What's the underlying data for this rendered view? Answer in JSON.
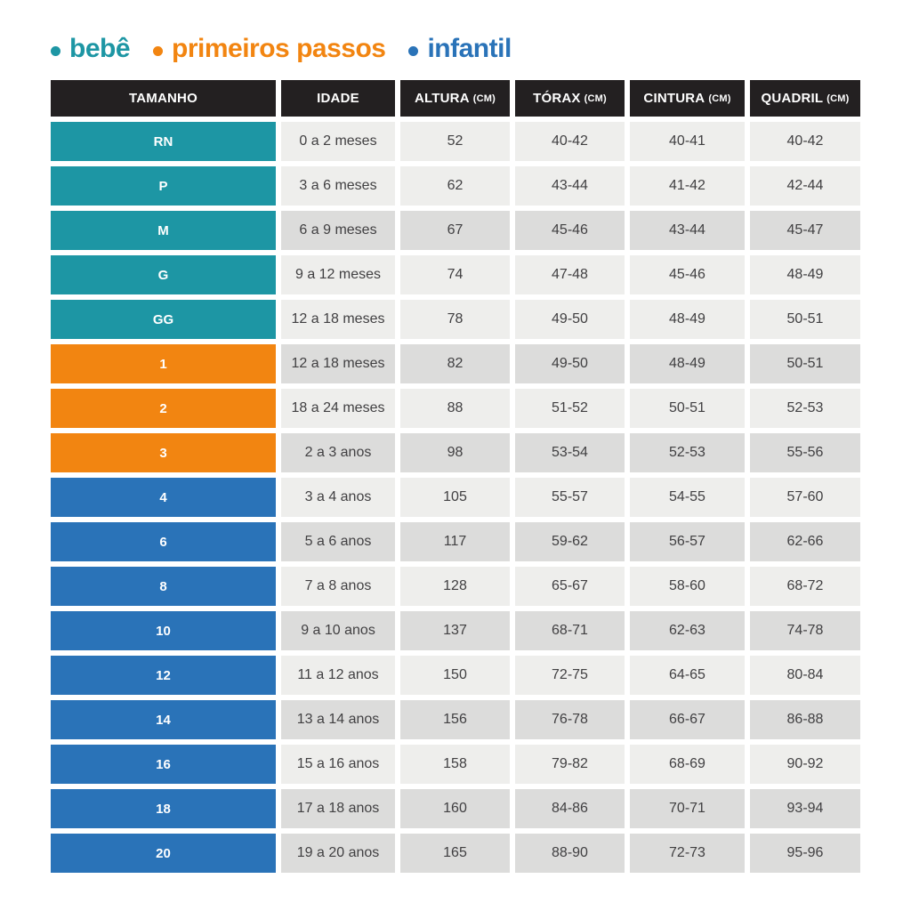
{
  "colors": {
    "bebe": "#1d96a4",
    "primeiros_passos": "#f28511",
    "infantil": "#2a73b8",
    "header_bg": "#232021",
    "row_light": "#eeeeec",
    "row_dark": "#dcdcdb",
    "cell_text": "#414042",
    "header_text": "#ffffff"
  },
  "legend": {
    "items": [
      {
        "label": "bebê",
        "color_key": "bebe"
      },
      {
        "label": "primeiros passos",
        "color_key": "primeiros_passos"
      },
      {
        "label": "infantil",
        "color_key": "infantil"
      }
    ]
  },
  "table": {
    "headers": [
      {
        "label": "TAMANHO",
        "unit": ""
      },
      {
        "label": "IDADE",
        "unit": ""
      },
      {
        "label": "ALTURA",
        "unit": "(CM)"
      },
      {
        "label": "TÓRAX",
        "unit": "(CM)"
      },
      {
        "label": "CINTURA",
        "unit": "(CM)"
      },
      {
        "label": "QUADRIL",
        "unit": "(CM)"
      }
    ],
    "rows": [
      {
        "size": "RN",
        "group": "bebe",
        "shade": "light",
        "idade": "0 a 2 meses",
        "altura": "52",
        "torax": "40-42",
        "cintura": "40-41",
        "quadril": "40-42"
      },
      {
        "size": "P",
        "group": "bebe",
        "shade": "light",
        "idade": "3 a 6 meses",
        "altura": "62",
        "torax": "43-44",
        "cintura": "41-42",
        "quadril": "42-44"
      },
      {
        "size": "M",
        "group": "bebe",
        "shade": "dark",
        "idade": "6 a 9 meses",
        "altura": "67",
        "torax": "45-46",
        "cintura": "43-44",
        "quadril": "45-47"
      },
      {
        "size": "G",
        "group": "bebe",
        "shade": "light",
        "idade": "9 a 12 meses",
        "altura": "74",
        "torax": "47-48",
        "cintura": "45-46",
        "quadril": "48-49"
      },
      {
        "size": "GG",
        "group": "bebe",
        "shade": "light",
        "idade": "12 a 18 meses",
        "altura": "78",
        "torax": "49-50",
        "cintura": "48-49",
        "quadril": "50-51"
      },
      {
        "size": "1",
        "group": "primeiros_passos",
        "shade": "dark",
        "idade": "12 a 18 meses",
        "altura": "82",
        "torax": "49-50",
        "cintura": "48-49",
        "quadril": "50-51"
      },
      {
        "size": "2",
        "group": "primeiros_passos",
        "shade": "light",
        "idade": "18 a 24 meses",
        "altura": "88",
        "torax": "51-52",
        "cintura": "50-51",
        "quadril": "52-53"
      },
      {
        "size": "3",
        "group": "primeiros_passos",
        "shade": "dark",
        "idade": "2 a 3 anos",
        "altura": "98",
        "torax": "53-54",
        "cintura": "52-53",
        "quadril": "55-56"
      },
      {
        "size": "4",
        "group": "infantil",
        "shade": "light",
        "idade": "3 a 4 anos",
        "altura": "105",
        "torax": "55-57",
        "cintura": "54-55",
        "quadril": "57-60"
      },
      {
        "size": "6",
        "group": "infantil",
        "shade": "dark",
        "idade": "5 a 6 anos",
        "altura": "117",
        "torax": "59-62",
        "cintura": "56-57",
        "quadril": "62-66"
      },
      {
        "size": "8",
        "group": "infantil",
        "shade": "light",
        "idade": "7 a 8 anos",
        "altura": "128",
        "torax": "65-67",
        "cintura": "58-60",
        "quadril": "68-72"
      },
      {
        "size": "10",
        "group": "infantil",
        "shade": "dark",
        "idade": "9 a 10 anos",
        "altura": "137",
        "torax": "68-71",
        "cintura": "62-63",
        "quadril": "74-78"
      },
      {
        "size": "12",
        "group": "infantil",
        "shade": "light",
        "idade": "11 a 12 anos",
        "altura": "150",
        "torax": "72-75",
        "cintura": "64-65",
        "quadril": "80-84"
      },
      {
        "size": "14",
        "group": "infantil",
        "shade": "dark",
        "idade": "13 a 14 anos",
        "altura": "156",
        "torax": "76-78",
        "cintura": "66-67",
        "quadril": "86-88"
      },
      {
        "size": "16",
        "group": "infantil",
        "shade": "light",
        "idade": "15 a 16 anos",
        "altura": "158",
        "torax": "79-82",
        "cintura": "68-69",
        "quadril": "90-92"
      },
      {
        "size": "18",
        "group": "infantil",
        "shade": "dark",
        "idade": "17 a 18 anos",
        "altura": "160",
        "torax": "84-86",
        "cintura": "70-71",
        "quadril": "93-94"
      },
      {
        "size": "20",
        "group": "infantil",
        "shade": "dark",
        "idade": "19 a 20 anos",
        "altura": "165",
        "torax": "88-90",
        "cintura": "72-73",
        "quadril": "95-96"
      }
    ]
  },
  "chart_data": {
    "type": "table",
    "title": "",
    "legend": [
      "bebê",
      "primeiros passos",
      "infantil"
    ],
    "columns": [
      "TAMANHO",
      "IDADE",
      "ALTURA (CM)",
      "TÓRAX (CM)",
      "CINTURA (CM)",
      "QUADRIL (CM)"
    ],
    "rows": [
      [
        "RN",
        "0 a 2 meses",
        "52",
        "40-42",
        "40-41",
        "40-42"
      ],
      [
        "P",
        "3 a 6 meses",
        "62",
        "43-44",
        "41-42",
        "42-44"
      ],
      [
        "M",
        "6 a 9 meses",
        "67",
        "45-46",
        "43-44",
        "45-47"
      ],
      [
        "G",
        "9 a 12 meses",
        "74",
        "47-48",
        "45-46",
        "48-49"
      ],
      [
        "GG",
        "12 a 18 meses",
        "78",
        "49-50",
        "48-49",
        "50-51"
      ],
      [
        "1",
        "12 a 18 meses",
        "82",
        "49-50",
        "48-49",
        "50-51"
      ],
      [
        "2",
        "18 a 24 meses",
        "88",
        "51-52",
        "50-51",
        "52-53"
      ],
      [
        "3",
        "2 a 3 anos",
        "98",
        "53-54",
        "52-53",
        "55-56"
      ],
      [
        "4",
        "3 a 4 anos",
        "105",
        "55-57",
        "54-55",
        "57-60"
      ],
      [
        "6",
        "5 a 6 anos",
        "117",
        "59-62",
        "56-57",
        "62-66"
      ],
      [
        "8",
        "7 a 8 anos",
        "128",
        "65-67",
        "58-60",
        "68-72"
      ],
      [
        "10",
        "9 a 10 anos",
        "137",
        "68-71",
        "62-63",
        "74-78"
      ],
      [
        "12",
        "11 a 12 anos",
        "150",
        "72-75",
        "64-65",
        "80-84"
      ],
      [
        "14",
        "13 a 14 anos",
        "156",
        "76-78",
        "66-67",
        "86-88"
      ],
      [
        "16",
        "15 a 16 anos",
        "158",
        "79-82",
        "68-69",
        "90-92"
      ],
      [
        "18",
        "17 a 18 anos",
        "160",
        "84-86",
        "70-71",
        "93-94"
      ],
      [
        "20",
        "19 a 20 anos",
        "165",
        "88-90",
        "72-73",
        "95-96"
      ]
    ],
    "row_groups": [
      "bebê: RN–GG",
      "primeiros passos: 1–3",
      "infantil: 4–20"
    ]
  }
}
